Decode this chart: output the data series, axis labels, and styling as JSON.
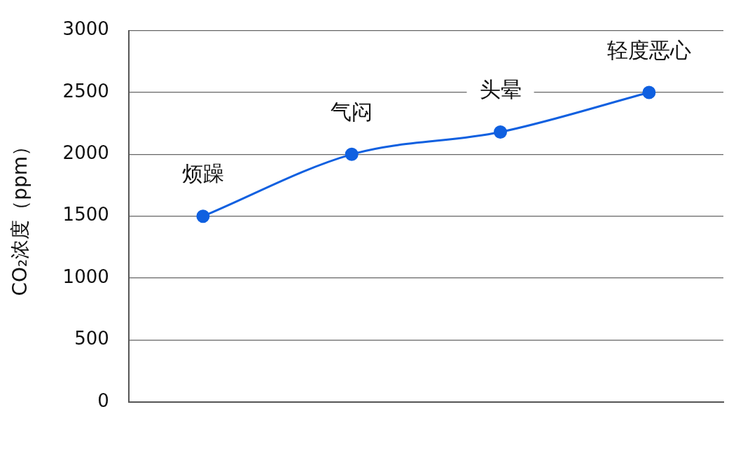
{
  "chart_data": {
    "type": "line",
    "ylabel": "CO₂浓度（ppm）",
    "categories": [
      null,
      null,
      null,
      null
    ],
    "series": [
      {
        "color": "#1060e0",
        "values": [
          1500,
          2000,
          2180,
          2500
        ],
        "value_labels": [
          "烦躁",
          "气闷",
          "头晕",
          "轻度恶心"
        ]
      }
    ],
    "ylim": [
      0,
      3000
    ],
    "yticks": [
      0,
      500,
      1000,
      1500,
      2000,
      2500,
      3000
    ],
    "grid": "y",
    "marker": "circle",
    "line_style": "solid"
  }
}
